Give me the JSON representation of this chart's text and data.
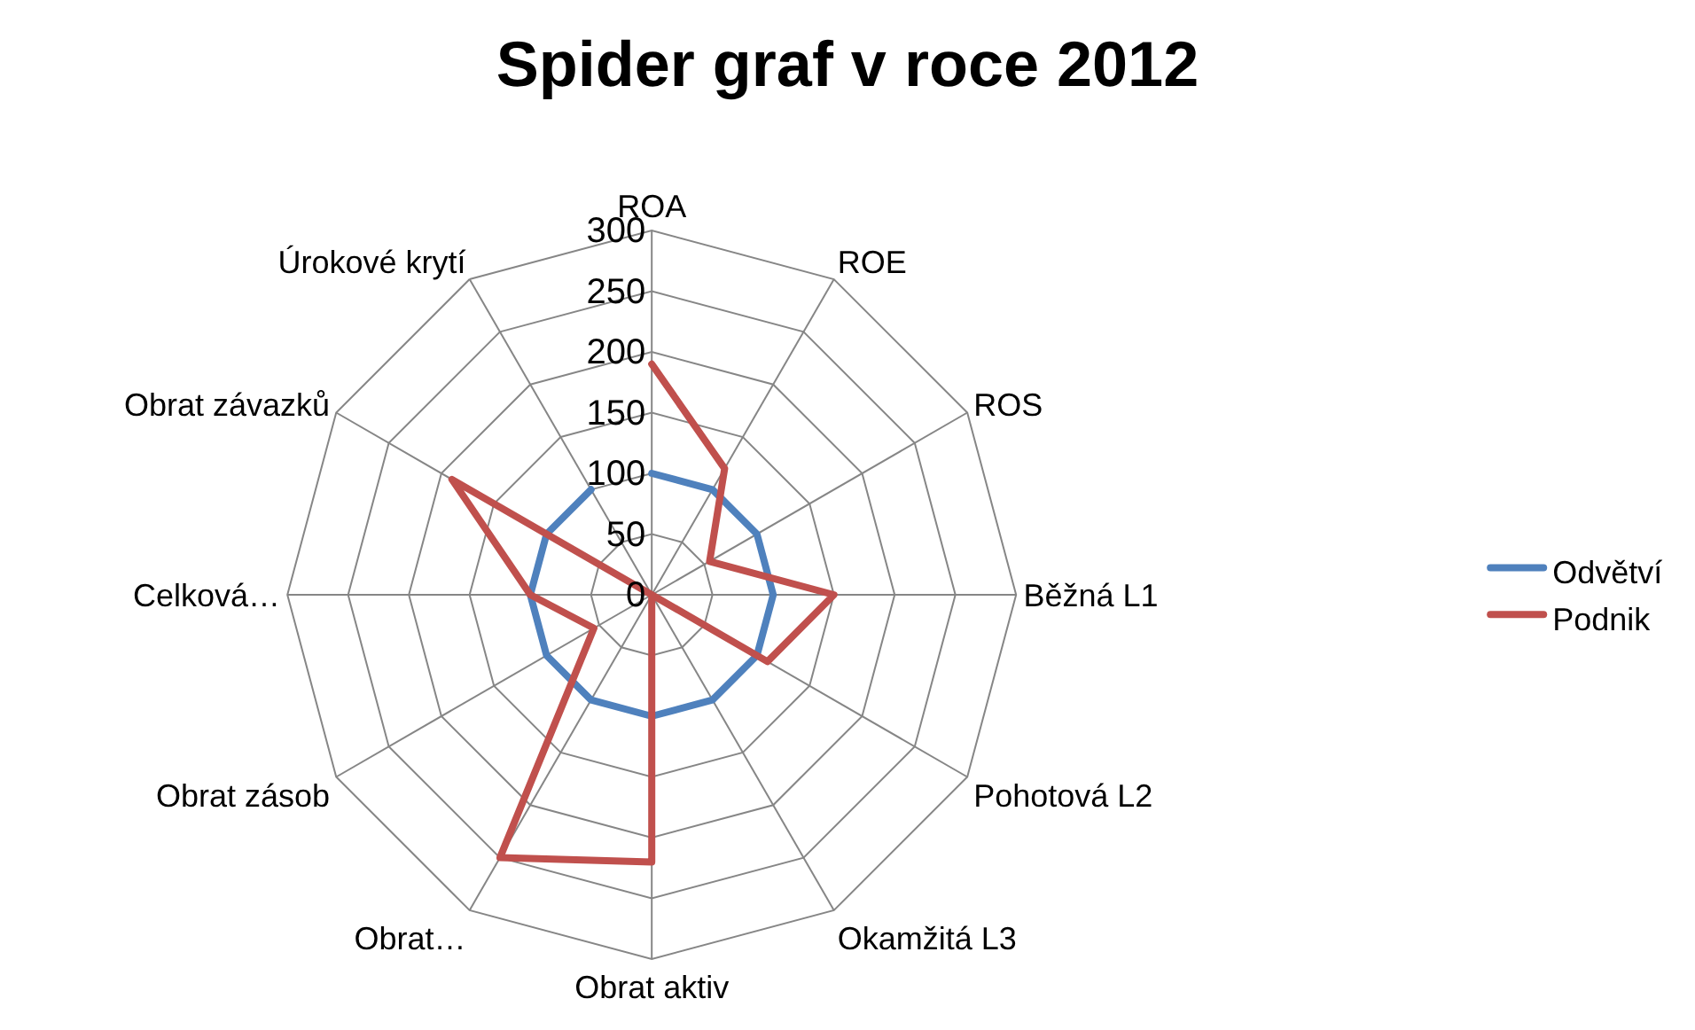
{
  "chart_data": {
    "type": "radar",
    "title": "Spider graf v roce 2012",
    "categories": [
      "ROA",
      "ROE",
      "ROS",
      "Běžná L1",
      "Pohotová L2",
      "Okamžitá L3",
      "Obrat aktiv",
      "Obrat…",
      "Obrat zásob",
      "Celková…",
      "Obrat závazků",
      "Úrokové krytí"
    ],
    "series": [
      {
        "name": "Odvětví",
        "color": "#4f81bd",
        "values": [
          100,
          100,
          100,
          100,
          100,
          100,
          100,
          100,
          100,
          100,
          100,
          100
        ]
      },
      {
        "name": "Podnik",
        "color": "#c0504d",
        "values": [
          190,
          120,
          55,
          150,
          110,
          0,
          220,
          250,
          55,
          100,
          190,
          0
        ]
      }
    ],
    "ylim": [
      0,
      300
    ],
    "yticks": [
      0,
      50,
      100,
      150,
      200,
      250,
      300
    ],
    "grid": true,
    "legend": "right",
    "marker": "none",
    "line_style": "solid"
  }
}
